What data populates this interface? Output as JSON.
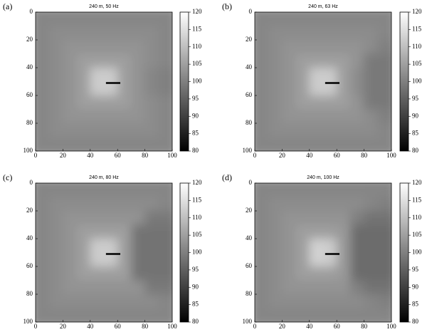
{
  "chart_data": [
    {
      "type": "heatmap",
      "panel_label": "(a)",
      "title": "240 m, 50 Hz",
      "xlim": [
        0,
        100
      ],
      "ylim": [
        0,
        100
      ],
      "y_inverted": true,
      "xticks": [
        0,
        20,
        40,
        60,
        80,
        100
      ],
      "yticks": [
        0,
        20,
        40,
        60,
        80,
        100
      ],
      "clim": [
        80,
        120
      ],
      "colorbar_ticks": [
        80,
        85,
        90,
        95,
        100,
        105,
        110,
        115,
        120
      ],
      "z": [
        [
          101,
          101,
          101,
          101,
          101,
          101,
          101,
          101,
          101,
          101
        ],
        [
          101,
          102,
          102,
          102,
          102,
          102,
          102,
          102,
          102,
          101
        ],
        [
          101,
          102,
          103,
          103,
          103,
          103,
          103,
          103,
          102,
          101
        ],
        [
          101,
          102,
          103,
          105,
          105,
          105,
          105,
          103,
          102,
          101
        ],
        [
          101,
          102,
          103,
          105,
          112,
          112,
          105,
          103,
          101,
          100
        ],
        [
          101,
          102,
          103,
          105,
          112,
          112,
          105,
          103,
          101,
          100
        ],
        [
          101,
          102,
          103,
          105,
          105,
          105,
          105,
          103,
          102,
          101
        ],
        [
          101,
          102,
          103,
          103,
          103,
          103,
          103,
          103,
          102,
          101
        ],
        [
          101,
          102,
          102,
          102,
          102,
          102,
          102,
          102,
          102,
          101
        ],
        [
          101,
          101,
          101,
          101,
          101,
          101,
          101,
          101,
          101,
          101
        ]
      ]
    },
    {
      "type": "heatmap",
      "panel_label": "(b)",
      "title": "240 m, 63 Hz",
      "xlim": [
        0,
        100
      ],
      "ylim": [
        0,
        100
      ],
      "y_inverted": true,
      "xticks": [
        0,
        20,
        40,
        60,
        80,
        100
      ],
      "yticks": [
        0,
        20,
        40,
        60,
        80,
        100
      ],
      "clim": [
        80,
        120
      ],
      "colorbar_ticks": [
        80,
        85,
        90,
        95,
        100,
        105,
        110,
        115,
        120
      ],
      "z": [
        [
          101,
          101,
          101,
          101,
          101,
          101,
          101,
          101,
          101,
          101
        ],
        [
          101,
          102,
          102,
          102,
          102,
          102,
          102,
          102,
          102,
          101
        ],
        [
          101,
          102,
          103,
          103,
          103,
          103,
          103,
          103,
          102,
          100
        ],
        [
          101,
          102,
          103,
          105,
          105,
          105,
          105,
          103,
          99,
          99
        ],
        [
          101,
          102,
          103,
          105,
          112,
          112,
          105,
          102,
          99,
          99
        ],
        [
          101,
          102,
          103,
          105,
          112,
          112,
          105,
          102,
          99,
          99
        ],
        [
          101,
          102,
          103,
          105,
          105,
          105,
          105,
          103,
          99,
          99
        ],
        [
          101,
          102,
          103,
          103,
          103,
          103,
          103,
          103,
          102,
          100
        ],
        [
          101,
          102,
          102,
          102,
          102,
          102,
          102,
          102,
          102,
          101
        ],
        [
          101,
          101,
          101,
          101,
          101,
          101,
          101,
          101,
          101,
          101
        ]
      ]
    },
    {
      "type": "heatmap",
      "panel_label": "(c)",
      "title": "240 m, 80 Hz",
      "xlim": [
        0,
        100
      ],
      "ylim": [
        0,
        100
      ],
      "y_inverted": true,
      "xticks": [
        0,
        20,
        40,
        60,
        80,
        100
      ],
      "yticks": [
        0,
        20,
        40,
        60,
        80,
        100
      ],
      "clim": [
        80,
        120
      ],
      "colorbar_ticks": [
        80,
        85,
        90,
        95,
        100,
        105,
        110,
        115,
        120
      ],
      "z": [
        [
          101,
          101,
          101,
          101,
          101,
          101,
          101,
          101,
          101,
          101
        ],
        [
          101,
          102,
          102,
          102,
          102,
          102,
          102,
          102,
          102,
          101
        ],
        [
          101,
          102,
          103,
          103,
          103,
          103,
          103,
          103,
          99,
          99
        ],
        [
          101,
          102,
          103,
          105,
          105,
          105,
          105,
          98,
          98,
          98
        ],
        [
          101,
          102,
          103,
          105,
          112,
          112,
          105,
          98,
          98,
          98
        ],
        [
          101,
          102,
          103,
          105,
          112,
          112,
          105,
          98,
          98,
          98
        ],
        [
          101,
          102,
          103,
          105,
          105,
          105,
          105,
          98,
          98,
          98
        ],
        [
          101,
          102,
          103,
          103,
          103,
          103,
          103,
          103,
          99,
          99
        ],
        [
          101,
          102,
          102,
          102,
          102,
          102,
          102,
          102,
          102,
          101
        ],
        [
          101,
          101,
          101,
          101,
          101,
          101,
          101,
          101,
          101,
          101
        ]
      ]
    },
    {
      "type": "heatmap",
      "panel_label": "(d)",
      "title": "240 m, 100 Hz",
      "xlim": [
        0,
        100
      ],
      "ylim": [
        0,
        100
      ],
      "y_inverted": true,
      "xticks": [
        0,
        20,
        40,
        60,
        80,
        100
      ],
      "yticks": [
        0,
        20,
        40,
        60,
        80,
        100
      ],
      "clim": [
        80,
        120
      ],
      "colorbar_ticks": [
        80,
        85,
        90,
        95,
        100,
        105,
        110,
        115,
        120
      ],
      "z": [
        [
          101,
          101,
          101,
          101,
          101,
          101,
          101,
          101,
          101,
          101
        ],
        [
          101,
          102,
          102,
          102,
          102,
          102,
          102,
          102,
          101,
          100
        ],
        [
          101,
          102,
          103,
          103,
          103,
          103,
          103,
          100,
          98,
          98
        ],
        [
          101,
          102,
          103,
          105,
          105,
          105,
          104,
          97,
          97,
          97
        ],
        [
          101,
          102,
          103,
          105,
          113,
          112,
          104,
          97,
          97,
          97
        ],
        [
          101,
          102,
          103,
          105,
          113,
          112,
          104,
          97,
          97,
          97
        ],
        [
          101,
          102,
          103,
          105,
          105,
          105,
          104,
          97,
          97,
          97
        ],
        [
          101,
          102,
          103,
          103,
          103,
          103,
          103,
          100,
          98,
          98
        ],
        [
          101,
          102,
          102,
          102,
          102,
          102,
          102,
          102,
          101,
          100
        ],
        [
          101,
          101,
          101,
          101,
          101,
          101,
          101,
          101,
          101,
          101
        ]
      ]
    }
  ]
}
